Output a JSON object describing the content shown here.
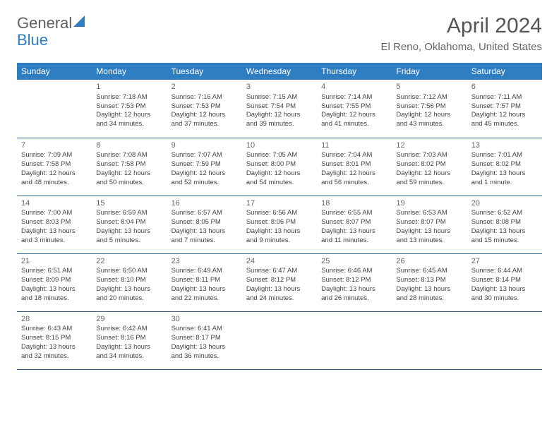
{
  "logo": {
    "text1": "General",
    "text2": "Blue"
  },
  "title": "April 2024",
  "location": "El Reno, Oklahoma, United States",
  "colors": {
    "header_bg": "#2f7ec1",
    "header_text": "#ffffff",
    "border": "#2f5f8f",
    "title_color": "#555555",
    "location_color": "#666666",
    "body_text": "#444444"
  },
  "day_headers": [
    "Sunday",
    "Monday",
    "Tuesday",
    "Wednesday",
    "Thursday",
    "Friday",
    "Saturday"
  ],
  "weeks": [
    [
      null,
      {
        "n": "1",
        "sr": "Sunrise: 7:18 AM",
        "ss": "Sunset: 7:53 PM",
        "dl": "Daylight: 12 hours and 34 minutes."
      },
      {
        "n": "2",
        "sr": "Sunrise: 7:16 AM",
        "ss": "Sunset: 7:53 PM",
        "dl": "Daylight: 12 hours and 37 minutes."
      },
      {
        "n": "3",
        "sr": "Sunrise: 7:15 AM",
        "ss": "Sunset: 7:54 PM",
        "dl": "Daylight: 12 hours and 39 minutes."
      },
      {
        "n": "4",
        "sr": "Sunrise: 7:14 AM",
        "ss": "Sunset: 7:55 PM",
        "dl": "Daylight: 12 hours and 41 minutes."
      },
      {
        "n": "5",
        "sr": "Sunrise: 7:12 AM",
        "ss": "Sunset: 7:56 PM",
        "dl": "Daylight: 12 hours and 43 minutes."
      },
      {
        "n": "6",
        "sr": "Sunrise: 7:11 AM",
        "ss": "Sunset: 7:57 PM",
        "dl": "Daylight: 12 hours and 45 minutes."
      }
    ],
    [
      {
        "n": "7",
        "sr": "Sunrise: 7:09 AM",
        "ss": "Sunset: 7:58 PM",
        "dl": "Daylight: 12 hours and 48 minutes."
      },
      {
        "n": "8",
        "sr": "Sunrise: 7:08 AM",
        "ss": "Sunset: 7:58 PM",
        "dl": "Daylight: 12 hours and 50 minutes."
      },
      {
        "n": "9",
        "sr": "Sunrise: 7:07 AM",
        "ss": "Sunset: 7:59 PM",
        "dl": "Daylight: 12 hours and 52 minutes."
      },
      {
        "n": "10",
        "sr": "Sunrise: 7:05 AM",
        "ss": "Sunset: 8:00 PM",
        "dl": "Daylight: 12 hours and 54 minutes."
      },
      {
        "n": "11",
        "sr": "Sunrise: 7:04 AM",
        "ss": "Sunset: 8:01 PM",
        "dl": "Daylight: 12 hours and 56 minutes."
      },
      {
        "n": "12",
        "sr": "Sunrise: 7:03 AM",
        "ss": "Sunset: 8:02 PM",
        "dl": "Daylight: 12 hours and 59 minutes."
      },
      {
        "n": "13",
        "sr": "Sunrise: 7:01 AM",
        "ss": "Sunset: 8:02 PM",
        "dl": "Daylight: 13 hours and 1 minute."
      }
    ],
    [
      {
        "n": "14",
        "sr": "Sunrise: 7:00 AM",
        "ss": "Sunset: 8:03 PM",
        "dl": "Daylight: 13 hours and 3 minutes."
      },
      {
        "n": "15",
        "sr": "Sunrise: 6:59 AM",
        "ss": "Sunset: 8:04 PM",
        "dl": "Daylight: 13 hours and 5 minutes."
      },
      {
        "n": "16",
        "sr": "Sunrise: 6:57 AM",
        "ss": "Sunset: 8:05 PM",
        "dl": "Daylight: 13 hours and 7 minutes."
      },
      {
        "n": "17",
        "sr": "Sunrise: 6:56 AM",
        "ss": "Sunset: 8:06 PM",
        "dl": "Daylight: 13 hours and 9 minutes."
      },
      {
        "n": "18",
        "sr": "Sunrise: 6:55 AM",
        "ss": "Sunset: 8:07 PM",
        "dl": "Daylight: 13 hours and 11 minutes."
      },
      {
        "n": "19",
        "sr": "Sunrise: 6:53 AM",
        "ss": "Sunset: 8:07 PM",
        "dl": "Daylight: 13 hours and 13 minutes."
      },
      {
        "n": "20",
        "sr": "Sunrise: 6:52 AM",
        "ss": "Sunset: 8:08 PM",
        "dl": "Daylight: 13 hours and 15 minutes."
      }
    ],
    [
      {
        "n": "21",
        "sr": "Sunrise: 6:51 AM",
        "ss": "Sunset: 8:09 PM",
        "dl": "Daylight: 13 hours and 18 minutes."
      },
      {
        "n": "22",
        "sr": "Sunrise: 6:50 AM",
        "ss": "Sunset: 8:10 PM",
        "dl": "Daylight: 13 hours and 20 minutes."
      },
      {
        "n": "23",
        "sr": "Sunrise: 6:49 AM",
        "ss": "Sunset: 8:11 PM",
        "dl": "Daylight: 13 hours and 22 minutes."
      },
      {
        "n": "24",
        "sr": "Sunrise: 6:47 AM",
        "ss": "Sunset: 8:12 PM",
        "dl": "Daylight: 13 hours and 24 minutes."
      },
      {
        "n": "25",
        "sr": "Sunrise: 6:46 AM",
        "ss": "Sunset: 8:12 PM",
        "dl": "Daylight: 13 hours and 26 minutes."
      },
      {
        "n": "26",
        "sr": "Sunrise: 6:45 AM",
        "ss": "Sunset: 8:13 PM",
        "dl": "Daylight: 13 hours and 28 minutes."
      },
      {
        "n": "27",
        "sr": "Sunrise: 6:44 AM",
        "ss": "Sunset: 8:14 PM",
        "dl": "Daylight: 13 hours and 30 minutes."
      }
    ],
    [
      {
        "n": "28",
        "sr": "Sunrise: 6:43 AM",
        "ss": "Sunset: 8:15 PM",
        "dl": "Daylight: 13 hours and 32 minutes."
      },
      {
        "n": "29",
        "sr": "Sunrise: 6:42 AM",
        "ss": "Sunset: 8:16 PM",
        "dl": "Daylight: 13 hours and 34 minutes."
      },
      {
        "n": "30",
        "sr": "Sunrise: 6:41 AM",
        "ss": "Sunset: 8:17 PM",
        "dl": "Daylight: 13 hours and 36 minutes."
      },
      null,
      null,
      null,
      null
    ]
  ]
}
